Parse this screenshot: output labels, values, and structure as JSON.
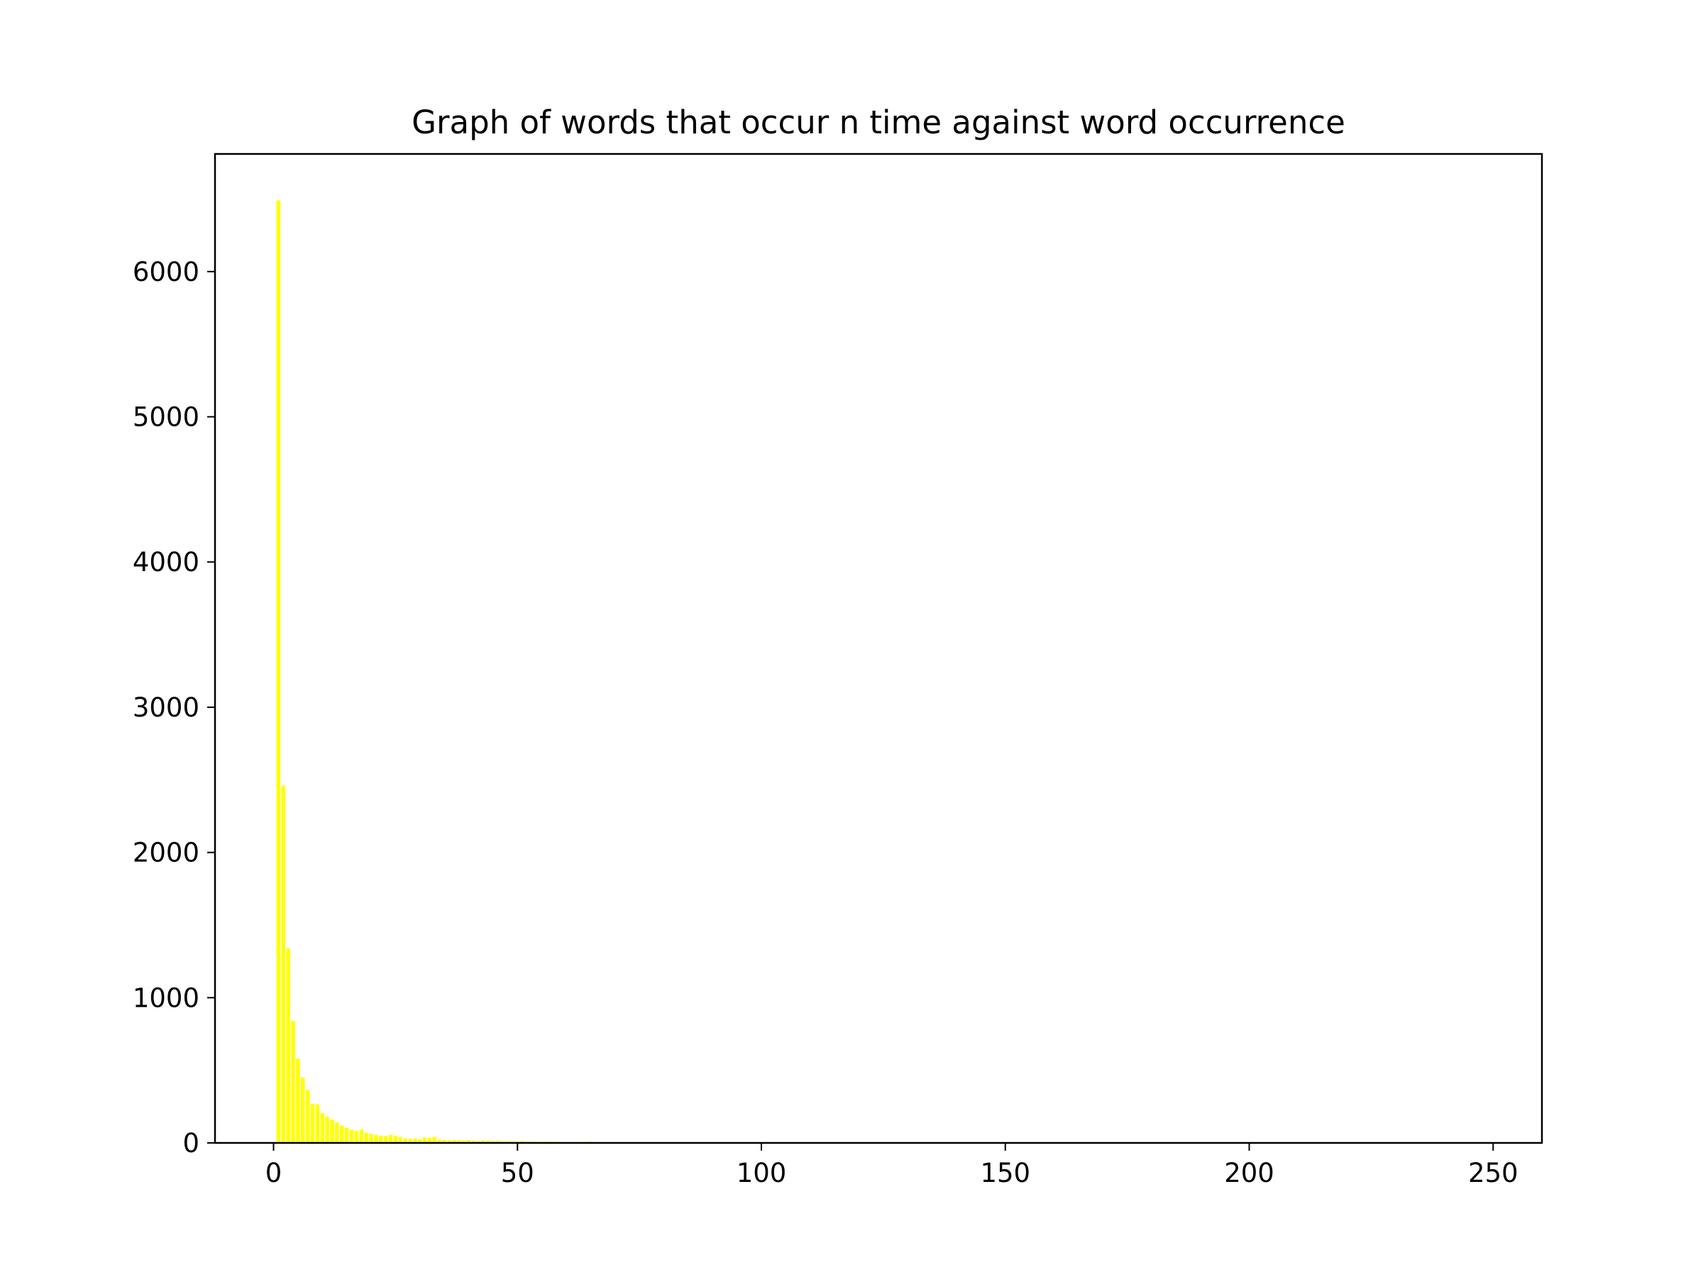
{
  "chart_data": {
    "type": "bar",
    "title": "Graph of words that occur n time against word occurrence",
    "xlabel": "",
    "ylabel": "",
    "xlim": [
      -12,
      260
    ],
    "ylim": [
      0,
      6810
    ],
    "xticks": [
      0,
      50,
      100,
      150,
      200,
      250
    ],
    "yticks": [
      0,
      1000,
      2000,
      3000,
      4000,
      5000,
      6000
    ],
    "grid": false,
    "legend": "none",
    "bar_color": "#ffff00",
    "x": [
      1,
      2,
      3,
      4,
      5,
      6,
      7,
      8,
      9,
      10,
      11,
      12,
      13,
      14,
      15,
      16,
      17,
      18,
      19,
      20,
      21,
      22,
      23,
      24,
      25,
      26,
      27,
      28,
      29,
      30,
      31,
      32,
      33,
      34,
      35,
      36,
      37,
      38,
      39,
      40,
      41,
      42,
      43,
      44,
      45,
      46,
      47,
      48,
      49,
      50,
      51,
      52,
      53,
      54,
      55,
      56,
      57,
      58,
      59,
      60,
      62,
      64,
      65,
      66,
      68,
      70,
      72,
      75,
      78,
      80,
      85,
      90,
      95,
      100,
      110,
      120,
      130,
      150,
      180,
      200,
      250
    ],
    "values": [
      6490,
      2460,
      1340,
      840,
      580,
      450,
      365,
      270,
      265,
      205,
      180,
      160,
      140,
      120,
      105,
      90,
      82,
      92,
      70,
      62,
      55,
      50,
      48,
      55,
      50,
      40,
      32,
      28,
      30,
      25,
      38,
      35,
      42,
      22,
      20,
      18,
      20,
      18,
      15,
      20,
      14,
      12,
      16,
      15,
      12,
      13,
      10,
      11,
      9,
      10,
      12,
      8,
      9,
      8,
      7,
      9,
      6,
      8,
      6,
      5,
      7,
      6,
      9,
      5,
      6,
      5,
      4,
      5,
      4,
      4,
      3,
      3,
      3,
      2,
      2,
      2,
      2,
      1,
      1,
      1,
      1
    ]
  }
}
